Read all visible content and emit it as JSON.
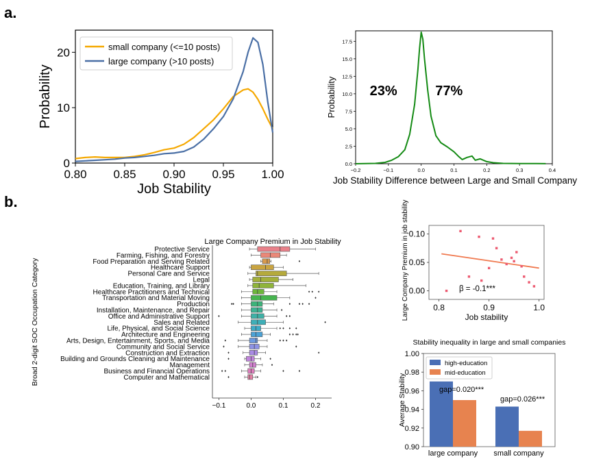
{
  "panel_labels": {
    "a": "a.",
    "b": "b."
  },
  "chart_data": [
    {
      "id": "density",
      "type": "line",
      "xlabel": "Job Stability",
      "ylabel": "Probability",
      "xlim": [
        0.8,
        1.0
      ],
      "ylim": [
        0,
        24
      ],
      "x_ticks": [
        "0.80",
        "0.85",
        "0.90",
        "0.95",
        "1.00"
      ],
      "x_tick_values": [
        0.8,
        0.85,
        0.9,
        0.95,
        1.0
      ],
      "y_ticks": [
        "0",
        "10",
        "20"
      ],
      "y_tick_values": [
        0,
        10,
        20
      ],
      "grid": false,
      "legend_position": "top-left",
      "series": [
        {
          "name": "small company (<=10 posts)",
          "color": "#f5a800",
          "x": [
            0.8,
            0.81,
            0.82,
            0.83,
            0.84,
            0.85,
            0.86,
            0.87,
            0.88,
            0.89,
            0.9,
            0.91,
            0.92,
            0.93,
            0.94,
            0.95,
            0.96,
            0.97,
            0.975,
            0.98,
            0.985,
            0.99,
            0.995,
            1.0
          ],
          "y": [
            0.8,
            1.0,
            1.1,
            1.0,
            1.0,
            1.0,
            1.2,
            1.5,
            1.9,
            2.4,
            2.7,
            3.4,
            4.6,
            6.2,
            7.8,
            9.8,
            12.0,
            13.2,
            13.4,
            12.8,
            11.5,
            9.8,
            7.9,
            6.2
          ]
        },
        {
          "name": "large company (>10 posts)",
          "color": "#4a6fa5",
          "x": [
            0.8,
            0.81,
            0.82,
            0.83,
            0.84,
            0.85,
            0.86,
            0.87,
            0.88,
            0.89,
            0.9,
            0.91,
            0.92,
            0.93,
            0.94,
            0.95,
            0.96,
            0.97,
            0.975,
            0.98,
            0.985,
            0.99,
            0.995,
            1.0
          ],
          "y": [
            0.3,
            0.4,
            0.5,
            0.6,
            0.7,
            0.9,
            1.0,
            1.2,
            1.4,
            1.7,
            1.8,
            2.1,
            2.9,
            4.3,
            6.2,
            8.4,
            11.6,
            16.5,
            20.0,
            22.6,
            21.8,
            17.8,
            11.0,
            5.5
          ]
        }
      ]
    },
    {
      "id": "difference",
      "type": "line",
      "xlabel": "Job Stability Difference between Large and Small Company",
      "ylabel": "Probability",
      "xlim": [
        -0.2,
        0.4
      ],
      "ylim": [
        0,
        19
      ],
      "x_ticks": [
        "−0.2",
        "−0.1",
        "0.0",
        "0.1",
        "0.2",
        "0.3",
        "0.4"
      ],
      "x_tick_values": [
        -0.2,
        -0.1,
        0.0,
        0.1,
        0.2,
        0.3,
        0.4
      ],
      "y_ticks": [
        "0.0",
        "2.5",
        "5.0",
        "7.5",
        "10.0",
        "12.5",
        "15.0",
        "17.5"
      ],
      "y_tick_values": [
        0,
        2.5,
        5,
        7.5,
        10,
        12.5,
        15,
        17.5
      ],
      "annotations": [
        {
          "text": "23%",
          "x": -0.115,
          "y": 9.8
        },
        {
          "text": "77%",
          "x": 0.085,
          "y": 9.8
        }
      ],
      "series": [
        {
          "name": "",
          "color": "#138a13",
          "x": [
            -0.2,
            -0.17,
            -0.14,
            -0.11,
            -0.09,
            -0.07,
            -0.05,
            -0.035,
            -0.02,
            -0.01,
            -0.005,
            0.0,
            0.005,
            0.01,
            0.02,
            0.03,
            0.045,
            0.06,
            0.08,
            0.1,
            0.115,
            0.125,
            0.14,
            0.155,
            0.165,
            0.18,
            0.2,
            0.22,
            0.25,
            0.3,
            0.35,
            0.38
          ],
          "y": [
            0.0,
            0.02,
            0.05,
            0.2,
            0.5,
            1.0,
            2.0,
            4.2,
            8.5,
            13.5,
            16.5,
            18.8,
            17.8,
            15.0,
            10.5,
            6.8,
            4.0,
            3.0,
            2.4,
            1.7,
            1.0,
            0.6,
            0.9,
            1.1,
            0.5,
            0.7,
            0.3,
            0.15,
            0.05,
            0.03,
            0.02,
            0.01
          ]
        }
      ]
    },
    {
      "id": "premium-boxplot",
      "type": "boxplot",
      "title": "Large Company Premium in Job Stability",
      "ylabel": "Broad 2-digit SOC Occupation Category",
      "xlim": [
        -0.12,
        0.25
      ],
      "x_ticks": [
        "−0.1",
        "0.0",
        "0.1",
        "0.2"
      ],
      "x_tick_values": [
        -0.1,
        0.0,
        0.1,
        0.2
      ],
      "categories": [
        "Protective Service",
        "Farming, Fishing, and Forestry",
        "Food Preparation and Serving Related",
        "Healthcare Support",
        "Personal Care and Service",
        "Legal",
        "Education, Training, and Library",
        "Healthcare Practitioners and Technical",
        "Transportation and Material Moving",
        "Production",
        "Installation, Maintenance, and Repair",
        "Office and Administrative Support",
        "Sales and Related",
        "Life, Physical, and Social Science",
        "Architecture and Engineering",
        "Arts, Design, Entertainment, Sports, and Media",
        "Community and Social Service",
        "Construction and Extraction",
        "Building and Grounds Cleaning and Maintenance",
        "Management",
        "Business and Financial Operations",
        "Computer and Mathematical"
      ],
      "colors": [
        "#e9818a",
        "#ea8878",
        "#d89a4e",
        "#c9a441",
        "#b5aa3c",
        "#a3b03a",
        "#8fb43a",
        "#6db63b",
        "#46b54f",
        "#3cb47a",
        "#3db394",
        "#3eb1a6",
        "#3eafb8",
        "#3eaac6",
        "#4aa2d6",
        "#6c9ae0",
        "#8d92e6",
        "#a98ae4",
        "#c184dd",
        "#d17fcf",
        "#df7dbd",
        "#e582a6"
      ],
      "boxes": [
        {
          "whislo": -0.005,
          "q1": 0.02,
          "med": 0.09,
          "q3": 0.12,
          "whishi": 0.2,
          "fliers": []
        },
        {
          "whislo": 0.0,
          "q1": 0.03,
          "med": 0.06,
          "q3": 0.09,
          "whishi": 0.11,
          "fliers": []
        },
        {
          "whislo": 0.03,
          "q1": 0.035,
          "med": 0.05,
          "q3": 0.058,
          "whishi": 0.062,
          "fliers": [
            0.15
          ]
        },
        {
          "whislo": -0.005,
          "q1": 0.0,
          "med": 0.045,
          "q3": 0.07,
          "whishi": 0.1,
          "fliers": []
        },
        {
          "whislo": -0.01,
          "q1": 0.015,
          "med": 0.02,
          "q3": 0.11,
          "whishi": 0.21,
          "fliers": []
        },
        {
          "whislo": -0.005,
          "q1": 0.005,
          "med": 0.03,
          "q3": 0.085,
          "whishi": 0.13,
          "fliers": []
        },
        {
          "whislo": -0.01,
          "q1": 0.005,
          "med": 0.025,
          "q3": 0.07,
          "whishi": 0.17,
          "fliers": []
        },
        {
          "whislo": -0.03,
          "q1": 0.005,
          "med": 0.02,
          "q3": 0.04,
          "whishi": 0.08,
          "fliers": [
            0.18,
            0.19,
            0.21
          ]
        },
        {
          "whislo": -0.03,
          "q1": 0.0,
          "med": 0.03,
          "q3": 0.08,
          "whishi": 0.12,
          "fliers": [
            0.2
          ]
        },
        {
          "whislo": -0.03,
          "q1": 0.0,
          "med": 0.02,
          "q3": 0.035,
          "whishi": 0.07,
          "fliers": [
            -0.055,
            -0.06,
            0.12,
            0.15,
            0.16,
            0.18
          ]
        },
        {
          "whislo": -0.03,
          "q1": 0.0,
          "med": 0.02,
          "q3": 0.035,
          "whishi": 0.08,
          "fliers": [
            0.095
          ]
        },
        {
          "whislo": -0.03,
          "q1": 0.0,
          "med": 0.02,
          "q3": 0.04,
          "whishi": 0.08,
          "fliers": [
            -0.1,
            0.11,
            0.12
          ]
        },
        {
          "whislo": -0.04,
          "q1": 0.0,
          "med": 0.02,
          "q3": 0.045,
          "whishi": 0.1,
          "fliers": [
            0.23
          ]
        },
        {
          "whislo": -0.02,
          "q1": 0.0,
          "med": 0.015,
          "q3": 0.03,
          "whishi": 0.08,
          "fliers": [
            0.09,
            0.1,
            0.12,
            0.14
          ]
        },
        {
          "whislo": -0.03,
          "q1": 0.0,
          "med": 0.015,
          "q3": 0.035,
          "whishi": 0.06,
          "fliers": [
            0.12,
            0.13,
            0.14,
            0.145
          ]
        },
        {
          "whislo": -0.04,
          "q1": -0.005,
          "med": 0.015,
          "q3": 0.02,
          "whishi": 0.05,
          "fliers": [
            -0.08,
            0.09,
            0.1,
            0.11
          ]
        },
        {
          "whislo": -0.04,
          "q1": -0.005,
          "med": 0.01,
          "q3": 0.025,
          "whishi": 0.05,
          "fliers": [
            -0.085,
            0.14
          ]
        },
        {
          "whislo": -0.025,
          "q1": -0.005,
          "med": 0.01,
          "q3": 0.02,
          "whishi": 0.045,
          "fliers": [
            -0.07,
            0.21
          ]
        },
        {
          "whislo": -0.02,
          "q1": -0.015,
          "med": 0.0,
          "q3": 0.01,
          "whishi": 0.03,
          "fliers": [
            -0.07,
            0.06
          ]
        },
        {
          "whislo": -0.02,
          "q1": -0.005,
          "med": 0.005,
          "q3": 0.015,
          "whishi": 0.035,
          "fliers": [
            0.065
          ]
        },
        {
          "whislo": -0.03,
          "q1": -0.01,
          "med": 0.0,
          "q3": 0.01,
          "whishi": 0.03,
          "fliers": [
            -0.09,
            -0.08,
            0.1,
            0.15
          ]
        },
        {
          "whislo": -0.02,
          "q1": -0.01,
          "med": -0.005,
          "q3": 0.005,
          "whishi": 0.015,
          "fliers": [
            -0.07,
            0.02
          ]
        }
      ]
    },
    {
      "id": "premium-scatter",
      "type": "scatter",
      "xlabel": "Job stability",
      "ylabel": "Large Company Premium in job stability",
      "xlim": [
        0.78,
        1.01
      ],
      "ylim": [
        -0.015,
        0.115
      ],
      "x_ticks": [
        "0.8",
        "0.9",
        "1.0"
      ],
      "x_tick_values": [
        0.8,
        0.9,
        1.0
      ],
      "y_ticks": [
        "0.00",
        "0.05",
        "0.10"
      ],
      "y_tick_values": [
        0.0,
        0.05,
        0.1
      ],
      "annotation": "β = -0.1***",
      "point_color": "#ec5a70",
      "line_color": "#f07a50",
      "points": [
        {
          "x": 0.815,
          "y": 0.0
        },
        {
          "x": 0.843,
          "y": 0.105
        },
        {
          "x": 0.88,
          "y": 0.095
        },
        {
          "x": 0.86,
          "y": 0.025
        },
        {
          "x": 0.885,
          "y": 0.018
        },
        {
          "x": 0.9,
          "y": 0.04
        },
        {
          "x": 0.908,
          "y": 0.092
        },
        {
          "x": 0.915,
          "y": 0.075
        },
        {
          "x": 0.925,
          "y": 0.055
        },
        {
          "x": 0.935,
          "y": 0.047
        },
        {
          "x": 0.945,
          "y": 0.058
        },
        {
          "x": 0.95,
          "y": 0.052
        },
        {
          "x": 0.955,
          "y": 0.068
        },
        {
          "x": 0.965,
          "y": 0.043
        },
        {
          "x": 0.97,
          "y": 0.025
        },
        {
          "x": 0.98,
          "y": 0.015
        },
        {
          "x": 0.99,
          "y": 0.008
        }
      ],
      "trend": {
        "x": [
          0.805,
          1.0
        ],
        "y": [
          0.065,
          0.04
        ]
      }
    },
    {
      "id": "inequality-bars",
      "type": "bar",
      "title": "Stability inequality in large and small companies",
      "ylabel": "Average Stability",
      "categories": [
        "large company",
        "small company"
      ],
      "ylim": [
        0.9,
        1.0
      ],
      "y_ticks": [
        "0.90",
        "0.92",
        "0.94",
        "0.96",
        "0.98",
        "1.00"
      ],
      "y_tick_values": [
        0.9,
        0.92,
        0.94,
        0.96,
        0.98,
        1.0
      ],
      "legend_position": "top-left",
      "series": [
        {
          "name": "high-education",
          "color": "#4a6fb5",
          "values": [
            0.97,
            0.943
          ]
        },
        {
          "name": "mid-education",
          "color": "#e7834f",
          "values": [
            0.95,
            0.917
          ]
        }
      ],
      "annotations": [
        "gap=0.020***",
        "gap=0.026***"
      ]
    }
  ]
}
